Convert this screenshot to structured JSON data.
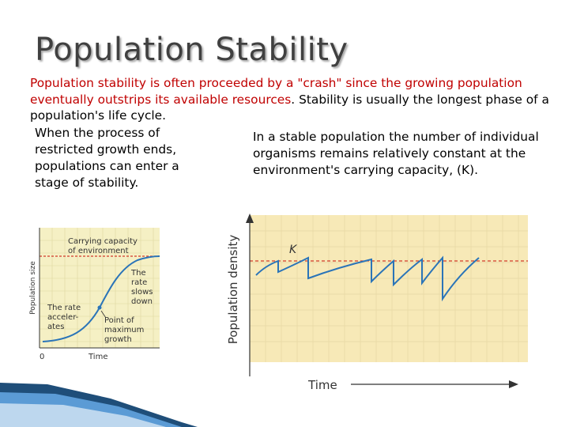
{
  "slide": {
    "title": "Population Stability",
    "intro_red": "Population stability is often proceeded by a \"crash\" since the growing population eventually outstrips its available resources",
    "intro_black": ". Stability is usually the longest phase of a population's life cycle.",
    "left_text": "When the process of restricted growth ends,  populations can enter a stage of stability.",
    "right_text": "In a stable population the number of individual organisms remains relatively constant at the environment's carrying capacity, (K)."
  },
  "figure_left": {
    "ylabel": "Population size",
    "xlabel": "Time",
    "origin": "0",
    "carrying_capacity": "Carrying capacity of environment",
    "slows": "The rate slows down",
    "accelerates": "The rate accel- erates",
    "max_growth": "Point of maximum growth",
    "colors": {
      "background": "#f5f0c4",
      "grid": "#ddd6a0",
      "curve": "#2a74b8",
      "dashed": "#d23b2a"
    }
  },
  "figure_right": {
    "ylabel": "Population density",
    "xlabel": "Time",
    "k_label": "K",
    "colors": {
      "background": "#f7e9b7",
      "grid": "#e6d7a3",
      "curve": "#2a74b8",
      "dashed": "#d23b2a"
    }
  },
  "theme": {
    "intro_red_color": "#c00000",
    "decoration_colors": [
      "#1f4e79",
      "#5b9bd5",
      "#bdd7ee"
    ]
  }
}
